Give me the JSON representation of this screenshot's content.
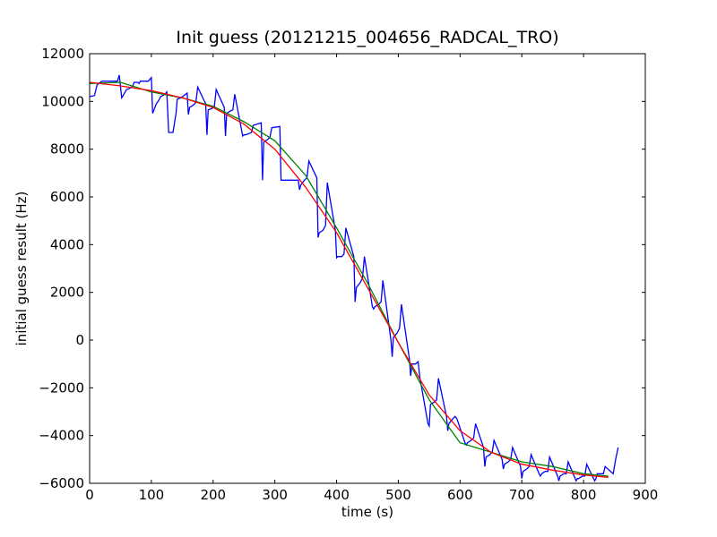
{
  "chart_data": {
    "type": "line",
    "title": "Init guess (20121215_004656_RADCAL_TRO)",
    "xlabel": "time (s)",
    "ylabel": "initial guess result (Hz)",
    "xlim": [
      0,
      900
    ],
    "ylim": [
      -6000,
      12000
    ],
    "xticks": [
      0,
      100,
      200,
      300,
      400,
      500,
      600,
      700,
      800,
      900
    ],
    "xtick_labels": [
      "0",
      "100",
      "200",
      "300",
      "400",
      "500",
      "600",
      "700",
      "800",
      "900"
    ],
    "yticks": [
      -6000,
      -4000,
      -2000,
      0,
      2000,
      4000,
      6000,
      8000,
      10000,
      12000
    ],
    "ytick_labels": [
      "−6000",
      "−4000",
      "−2000",
      "0",
      "2000",
      "4000",
      "6000",
      "8000",
      "10000",
      "12000"
    ],
    "grid": false,
    "legend": "none",
    "series": [
      {
        "color": "#0000ff",
        "x": [
          0,
          8,
          12,
          20,
          30,
          45,
          48,
          52,
          60,
          65,
          70,
          72,
          78,
          80,
          82,
          95,
          100,
          102,
          108,
          112,
          115,
          122,
          125,
          128,
          132,
          135,
          140,
          142,
          148,
          158,
          160,
          162,
          168,
          172,
          175,
          188,
          190,
          192,
          198,
          202,
          205,
          218,
          220,
          222,
          228,
          232,
          235,
          248,
          250,
          252,
          258,
          262,
          265,
          278,
          280,
          282,
          288,
          292,
          295,
          308,
          310,
          312,
          318,
          322,
          325,
          338,
          340,
          342,
          348,
          352,
          355,
          368,
          370,
          372,
          378,
          382,
          385,
          398,
          400,
          402,
          408,
          412,
          415,
          428,
          430,
          432,
          438,
          442,
          445,
          458,
          460,
          462,
          468,
          472,
          475,
          488,
          490,
          492,
          498,
          502,
          505,
          518,
          520,
          522,
          528,
          532,
          535,
          548,
          550,
          552,
          558,
          562,
          565,
          578,
          580,
          582,
          588,
          592,
          595,
          608,
          610,
          612,
          618,
          622,
          625,
          638,
          640,
          642,
          648,
          652,
          655,
          668,
          670,
          672,
          678,
          682,
          685,
          698,
          700,
          702,
          708,
          712,
          715,
          728,
          730,
          732,
          738,
          742,
          745,
          758,
          760,
          762,
          768,
          772,
          775,
          788,
          790,
          792,
          798,
          802,
          805,
          818,
          820,
          822,
          828,
          832,
          835,
          848,
          852,
          856
        ],
        "y": [
          10200,
          10250,
          10700,
          10850,
          10850,
          10850,
          11100,
          10150,
          10500,
          10550,
          10650,
          10800,
          10800,
          10750,
          10850,
          10850,
          11000,
          9500,
          9900,
          10050,
          10200,
          10300,
          10400,
          8700,
          8700,
          8700,
          9500,
          10100,
          10150,
          10350,
          9450,
          9750,
          9850,
          9950,
          10600,
          9900,
          8600,
          9650,
          9700,
          9800,
          10500,
          9750,
          8550,
          9500,
          9600,
          9650,
          10300,
          8550,
          8600,
          8600,
          8650,
          8700,
          9000,
          9100,
          6700,
          8300,
          8400,
          8500,
          8900,
          8950,
          6700,
          6700,
          6700,
          6700,
          6700,
          6700,
          6300,
          6500,
          6700,
          6800,
          7500,
          6800,
          4300,
          4500,
          4600,
          4800,
          6600,
          4600,
          3450,
          3500,
          3500,
          3600,
          4700,
          3500,
          1600,
          2200,
          2400,
          2600,
          3500,
          1400,
          1300,
          1400,
          1500,
          1600,
          2500,
          0,
          -700,
          100,
          300,
          500,
          1500,
          -800,
          -1500,
          -1000,
          -1000,
          -900,
          -1600,
          -3500,
          -3600,
          -2700,
          -2600,
          -2500,
          -1600,
          -3200,
          -3800,
          -3500,
          -3300,
          -3200,
          -3300,
          -4300,
          -4400,
          -4300,
          -4200,
          -4100,
          -3500,
          -4500,
          -5300,
          -4900,
          -4800,
          -4700,
          -4200,
          -5000,
          -5400,
          -5200,
          -5100,
          -5000,
          -4500,
          -5300,
          -5800,
          -5500,
          -5400,
          -5300,
          -4800,
          -5600,
          -5700,
          -5600,
          -5500,
          -5500,
          -4900,
          -5700,
          -5900,
          -5700,
          -5600,
          -5600,
          -5100,
          -5900,
          -5800,
          -5800,
          -5700,
          -5700,
          -5200,
          -5900,
          -5800,
          -5600,
          -5600,
          -5600,
          -5300,
          -5600,
          -5000,
          -4500
        ]
      },
      {
        "color": "#008000",
        "x": [
          0,
          50,
          100,
          150,
          200,
          250,
          300,
          350,
          400,
          450,
          500,
          550,
          600,
          650,
          700,
          750,
          800,
          840
        ],
        "y": [
          10750,
          10800,
          10400,
          10150,
          9800,
          9150,
          8350,
          6900,
          4700,
          2400,
          -100,
          -2500,
          -4300,
          -4700,
          -5100,
          -5300,
          -5600,
          -5700
        ]
      },
      {
        "color": "#ff0000",
        "x": [
          0,
          50,
          100,
          150,
          200,
          250,
          300,
          350,
          400,
          450,
          500,
          550,
          600,
          650,
          700,
          750,
          800,
          840
        ],
        "y": [
          10800,
          10650,
          10450,
          10150,
          9750,
          9050,
          8000,
          6400,
          4500,
          2200,
          -100,
          -2300,
          -3800,
          -4700,
          -5200,
          -5450,
          -5650,
          -5750
        ]
      }
    ]
  }
}
